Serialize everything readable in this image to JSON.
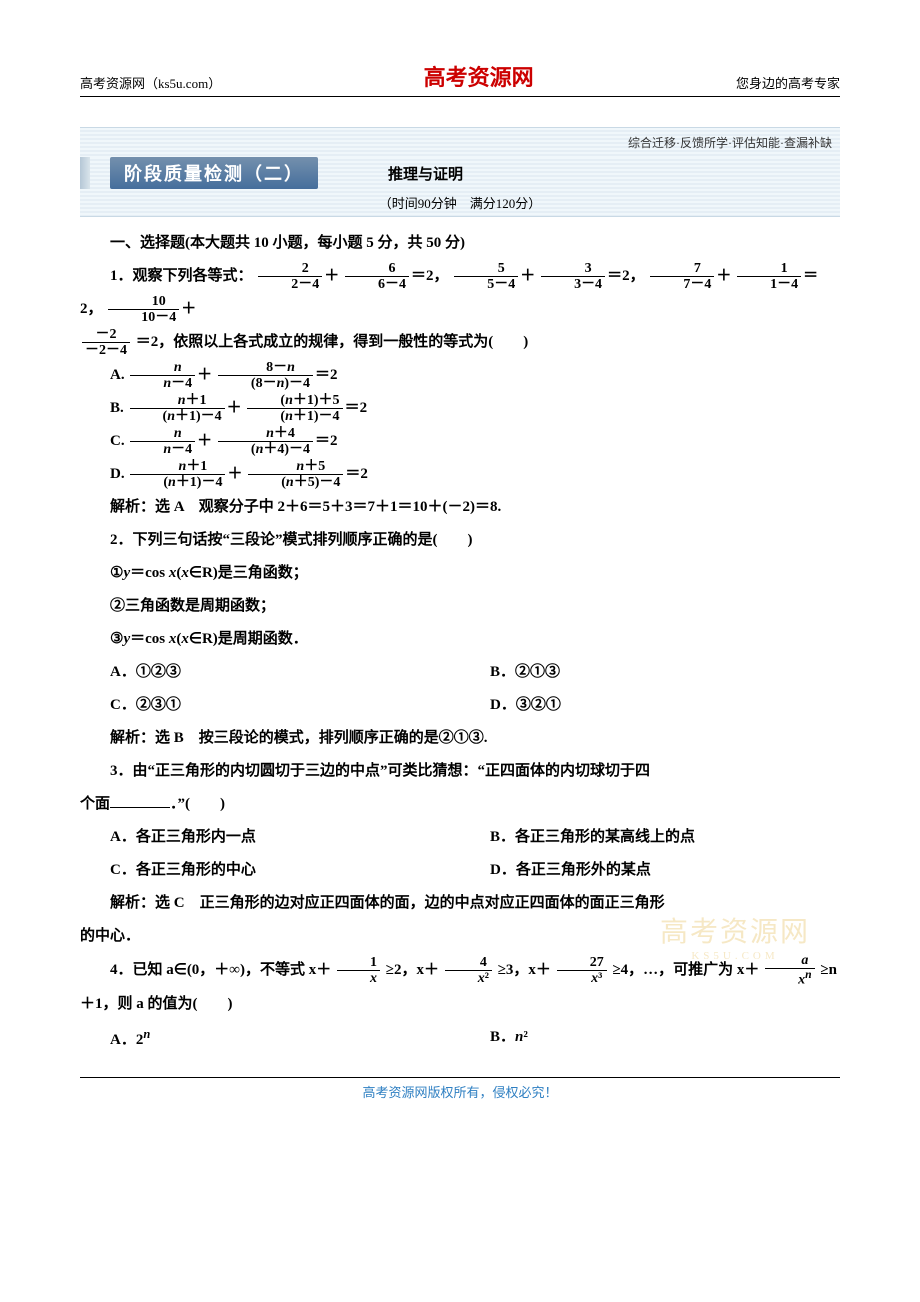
{
  "header": {
    "left": "高考资源网（ks5u.com）",
    "center": "高考资源网",
    "right": "您身边的高考专家"
  },
  "banner": {
    "top_text": "综合迁移·反馈所学·评估知能·查漏补缺",
    "title": "阶段质量检测（二）",
    "subtitle": "推理与证明",
    "info": "（时间90分钟　满分120分）"
  },
  "section1_title": "一、选择题(本大题共 10 小题，每小题 5 分，共 50 分)",
  "q1": {
    "stem_pre": "1．观察下列各等式：",
    "tail": "＝2，依照以上各式成立的规律，得到一般性的等式为(　　)",
    "optA_pre": "A.",
    "optB_pre": "B.",
    "optC_pre": "C.",
    "optD_pre": "D.",
    "ans": "解析：选 A　观察分子中 2＋6＝5＋3＝7＋1＝10＋(－2)＝8."
  },
  "q2": {
    "stem": "2．下列三句话按“三段论”模式排列顺序正确的是(　　)",
    "l1": "①y＝cos x(x∈R)是三角函数；",
    "l2": "②三角函数是周期函数；",
    "l3": "③y＝cos x(x∈R)是周期函数．",
    "A": "A．①②③",
    "B": "B．②①③",
    "C": "C．②③①",
    "D": "D．③②①",
    "ans": "解析：选 B　按三段论的模式，排列顺序正确的是②①③."
  },
  "q3": {
    "stem1": "3．由“正三角形的内切圆切于三边的中点”可类比猜想：“正四面体的内切球切于四",
    "stem2": "个面",
    "stem3": "．”(　　)",
    "A": "A．各正三角形内一点",
    "B": "B．各正三角形的某高线上的点",
    "C": "C．各正三角形的中心",
    "D": "D．各正三角形外的某点",
    "ans": "解析：选 C　正三角形的边对应正四面体的面，边的中点对应正四面体的面正三角形",
    "ans2": "的中心．"
  },
  "q4": {
    "stem_pre": "4．已知 a∈(0，＋∞)，不等式 x＋",
    "ge2": "≥2，x＋",
    "ge3": "≥3，x＋",
    "ge4": "≥4，…，可推广为 x＋",
    "ge_n": "≥n",
    "stem_tail": "＋1，则 a 的值为(　　)",
    "A": "A．2ⁿ",
    "B": "B．n²"
  },
  "watermark": {
    "main": "高考资源网",
    "sub": "KS5U.COM"
  },
  "footer": "高考资源网版权所有，侵权必究！"
}
